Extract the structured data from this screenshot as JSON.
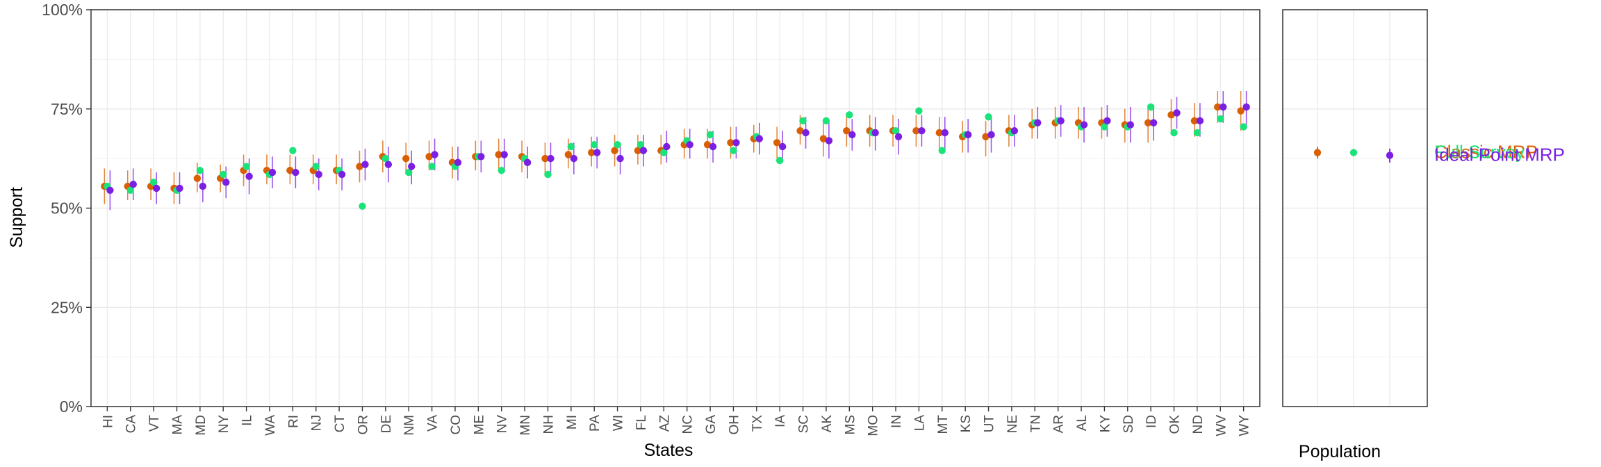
{
  "chart_data": [
    {
      "type": "scatter",
      "xlabel": "States",
      "ylabel": "Support",
      "ylim": [
        0,
        1
      ],
      "yticks": [
        "0%",
        "25%",
        "50%",
        "75%",
        "100%"
      ],
      "grid": true,
      "categories": [
        "HI",
        "CA",
        "VT",
        "MA",
        "MD",
        "NY",
        "IL",
        "WA",
        "RI",
        "NJ",
        "CT",
        "OR",
        "DE",
        "NM",
        "VA",
        "CO",
        "ME",
        "NV",
        "MN",
        "NH",
        "MI",
        "PA",
        "WI",
        "FL",
        "AZ",
        "NC",
        "GA",
        "OH",
        "TX",
        "IA",
        "SC",
        "AK",
        "MS",
        "MO",
        "IN",
        "LA",
        "MT",
        "KS",
        "UT",
        "NE",
        "TN",
        "AR",
        "AL",
        "KY",
        "SD",
        "ID",
        "OK",
        "ND",
        "WV",
        "WY"
      ],
      "series": [
        {
          "color": "#d95f02",
          "values": [
            0.555,
            0.555,
            0.555,
            0.55,
            0.575,
            0.575,
            0.595,
            0.595,
            0.595,
            0.595,
            0.595,
            0.605,
            0.63,
            0.625,
            0.63,
            0.615,
            0.63,
            0.635,
            0.63,
            0.625,
            0.635,
            0.64,
            0.645,
            0.645,
            0.645,
            0.66,
            0.66,
            0.665,
            0.675,
            0.665,
            0.695,
            0.675,
            0.695,
            0.695,
            0.695,
            0.695,
            0.69,
            0.68,
            0.68,
            0.695,
            0.71,
            0.715,
            0.715,
            0.715,
            0.71,
            0.715,
            0.735,
            0.72,
            0.755,
            0.745
          ],
          "lower": [
            0.51,
            0.52,
            0.52,
            0.51,
            0.54,
            0.54,
            0.555,
            0.56,
            0.56,
            0.56,
            0.56,
            0.565,
            0.59,
            0.585,
            0.595,
            0.575,
            0.595,
            0.6,
            0.59,
            0.585,
            0.6,
            0.605,
            0.605,
            0.61,
            0.61,
            0.625,
            0.625,
            0.625,
            0.64,
            0.625,
            0.66,
            0.63,
            0.655,
            0.655,
            0.655,
            0.655,
            0.65,
            0.64,
            0.63,
            0.655,
            0.675,
            0.675,
            0.675,
            0.675,
            0.665,
            0.665,
            0.695,
            0.68,
            0.715,
            0.695
          ],
          "upper": [
            0.6,
            0.595,
            0.6,
            0.59,
            0.615,
            0.61,
            0.635,
            0.635,
            0.635,
            0.635,
            0.635,
            0.645,
            0.67,
            0.665,
            0.67,
            0.655,
            0.67,
            0.675,
            0.67,
            0.665,
            0.675,
            0.68,
            0.685,
            0.685,
            0.685,
            0.7,
            0.7,
            0.705,
            0.71,
            0.705,
            0.735,
            0.72,
            0.735,
            0.735,
            0.735,
            0.735,
            0.73,
            0.72,
            0.72,
            0.735,
            0.75,
            0.755,
            0.755,
            0.755,
            0.75,
            0.76,
            0.775,
            0.765,
            0.795,
            0.795
          ]
        },
        {
          "color": "#1be37a",
          "values": [
            0.555,
            0.545,
            0.565,
            0.545,
            0.595,
            0.585,
            0.605,
            0.585,
            0.645,
            0.605,
            0.595,
            0.505,
            0.625,
            0.59,
            0.605,
            0.605,
            0.63,
            0.595,
            0.625,
            0.585,
            0.655,
            0.66,
            0.66,
            0.66,
            0.64,
            0.67,
            0.685,
            0.645,
            0.68,
            0.62,
            0.72,
            0.72,
            0.735,
            0.69,
            0.695,
            0.745,
            0.645,
            0.685,
            0.73,
            0.69,
            0.715,
            0.72,
            0.705,
            0.705,
            0.705,
            0.755,
            0.69,
            0.69,
            0.725,
            0.705
          ]
        },
        {
          "color": "#7b1fe3",
          "values": [
            0.545,
            0.56,
            0.55,
            0.55,
            0.555,
            0.565,
            0.58,
            0.59,
            0.59,
            0.585,
            0.585,
            0.61,
            0.61,
            0.605,
            0.635,
            0.615,
            0.63,
            0.635,
            0.615,
            0.625,
            0.625,
            0.64,
            0.625,
            0.645,
            0.655,
            0.66,
            0.655,
            0.665,
            0.675,
            0.655,
            0.69,
            0.67,
            0.685,
            0.69,
            0.68,
            0.695,
            0.69,
            0.685,
            0.685,
            0.695,
            0.715,
            0.72,
            0.71,
            0.72,
            0.71,
            0.715,
            0.74,
            0.72,
            0.755,
            0.755
          ],
          "lower": [
            0.495,
            0.52,
            0.51,
            0.51,
            0.515,
            0.525,
            0.535,
            0.55,
            0.55,
            0.545,
            0.545,
            0.57,
            0.565,
            0.56,
            0.595,
            0.57,
            0.59,
            0.59,
            0.575,
            0.58,
            0.585,
            0.6,
            0.585,
            0.605,
            0.615,
            0.625,
            0.615,
            0.625,
            0.635,
            0.615,
            0.65,
            0.625,
            0.645,
            0.645,
            0.635,
            0.655,
            0.65,
            0.64,
            0.64,
            0.655,
            0.675,
            0.68,
            0.665,
            0.68,
            0.665,
            0.67,
            0.7,
            0.68,
            0.715,
            0.71
          ],
          "upper": [
            0.595,
            0.6,
            0.59,
            0.59,
            0.595,
            0.605,
            0.625,
            0.63,
            0.63,
            0.625,
            0.625,
            0.65,
            0.655,
            0.645,
            0.675,
            0.655,
            0.67,
            0.675,
            0.655,
            0.665,
            0.665,
            0.68,
            0.665,
            0.685,
            0.695,
            0.7,
            0.695,
            0.705,
            0.715,
            0.695,
            0.73,
            0.715,
            0.725,
            0.73,
            0.725,
            0.735,
            0.73,
            0.725,
            0.73,
            0.735,
            0.755,
            0.76,
            0.755,
            0.76,
            0.755,
            0.76,
            0.78,
            0.765,
            0.795,
            0.795
          ]
        }
      ]
    },
    {
      "type": "scatter",
      "xlabel": "Population",
      "ylim": [
        0,
        1
      ],
      "grid": true,
      "series": [
        {
          "name": "Classic MRP",
          "color": "#d95f02",
          "value": 0.64,
          "lower": 0.625,
          "upper": 0.655
        },
        {
          "name": "Full Survey",
          "color": "#1be37a",
          "value": 0.64
        },
        {
          "name": "Ideal Point MRP",
          "color": "#7b1fe3",
          "value": 0.633,
          "lower": 0.615,
          "upper": 0.65
        }
      ]
    }
  ]
}
